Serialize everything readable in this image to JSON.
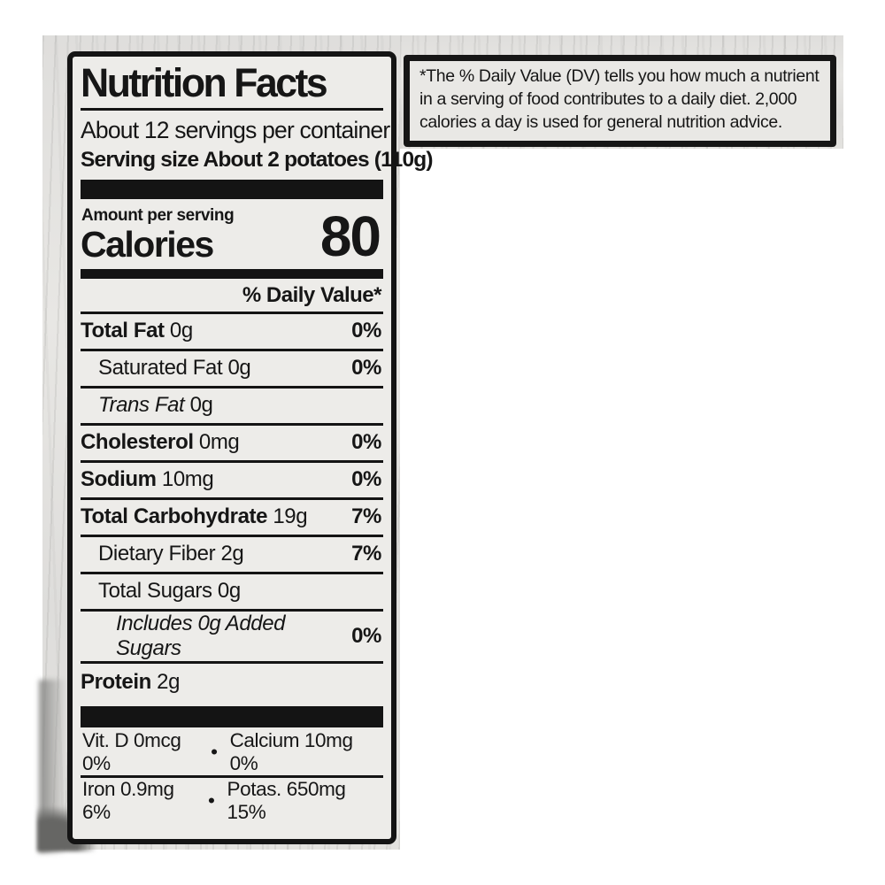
{
  "colors": {
    "ink": "#141414",
    "label_background": "#edece9",
    "bag_gray": "#dfdedc",
    "page_background": "#ffffff"
  },
  "label": {
    "title": "Nutrition Facts",
    "servings_per_container": "About 12 servings per container",
    "serving_size_label": "Serving size",
    "serving_size_value": "About 2 potatoes (110g)",
    "amount_per_serving": "Amount per serving",
    "calories_label": "Calories",
    "calories_value": "80",
    "daily_value_header": "% Daily Value*",
    "rows": [
      {
        "name": "Total Fat",
        "value": "0g",
        "dv": "0%",
        "indent": 0,
        "bold": true,
        "italic": false
      },
      {
        "name": "Saturated Fat",
        "value": "0g",
        "dv": "0%",
        "indent": 1,
        "bold": false,
        "italic": false
      },
      {
        "name": "Trans Fat",
        "value": "0g",
        "dv": "",
        "indent": 1,
        "bold": false,
        "italic": true
      },
      {
        "name": "Cholesterol",
        "value": "0mg",
        "dv": "0%",
        "indent": 0,
        "bold": true,
        "italic": false
      },
      {
        "name": "Sodium",
        "value": "10mg",
        "dv": "0%",
        "indent": 0,
        "bold": true,
        "italic": false
      },
      {
        "name": "Total Carbohydrate",
        "value": "19g",
        "dv": "7%",
        "indent": 0,
        "bold": true,
        "italic": false
      },
      {
        "name": "Dietary Fiber",
        "value": "2g",
        "dv": "7%",
        "indent": 1,
        "bold": false,
        "italic": false
      },
      {
        "name": "Total Sugars",
        "value": "0g",
        "dv": "",
        "indent": 1,
        "bold": false,
        "italic": false
      },
      {
        "name": "Includes 0g Added Sugars",
        "value": "",
        "dv": "0%",
        "indent": 2,
        "bold": false,
        "italic": true
      },
      {
        "name": "Protein",
        "value": "2g",
        "dv": "",
        "indent": 0,
        "bold": true,
        "italic": false
      }
    ],
    "micronutrients": [
      {
        "left": "Vit. D 0mcg 0%",
        "bullet": "•",
        "right": "Calcium 10mg 0%"
      },
      {
        "left": "Iron 0.9mg 6%",
        "bullet": "•",
        "right": "Potas. 650mg 15%"
      }
    ],
    "footnote": "*The % Daily Value (DV) tells you how much a nutrient in a serving of food contributes to a daily diet. 2,000 calories a day is used for general nutrition advice."
  }
}
